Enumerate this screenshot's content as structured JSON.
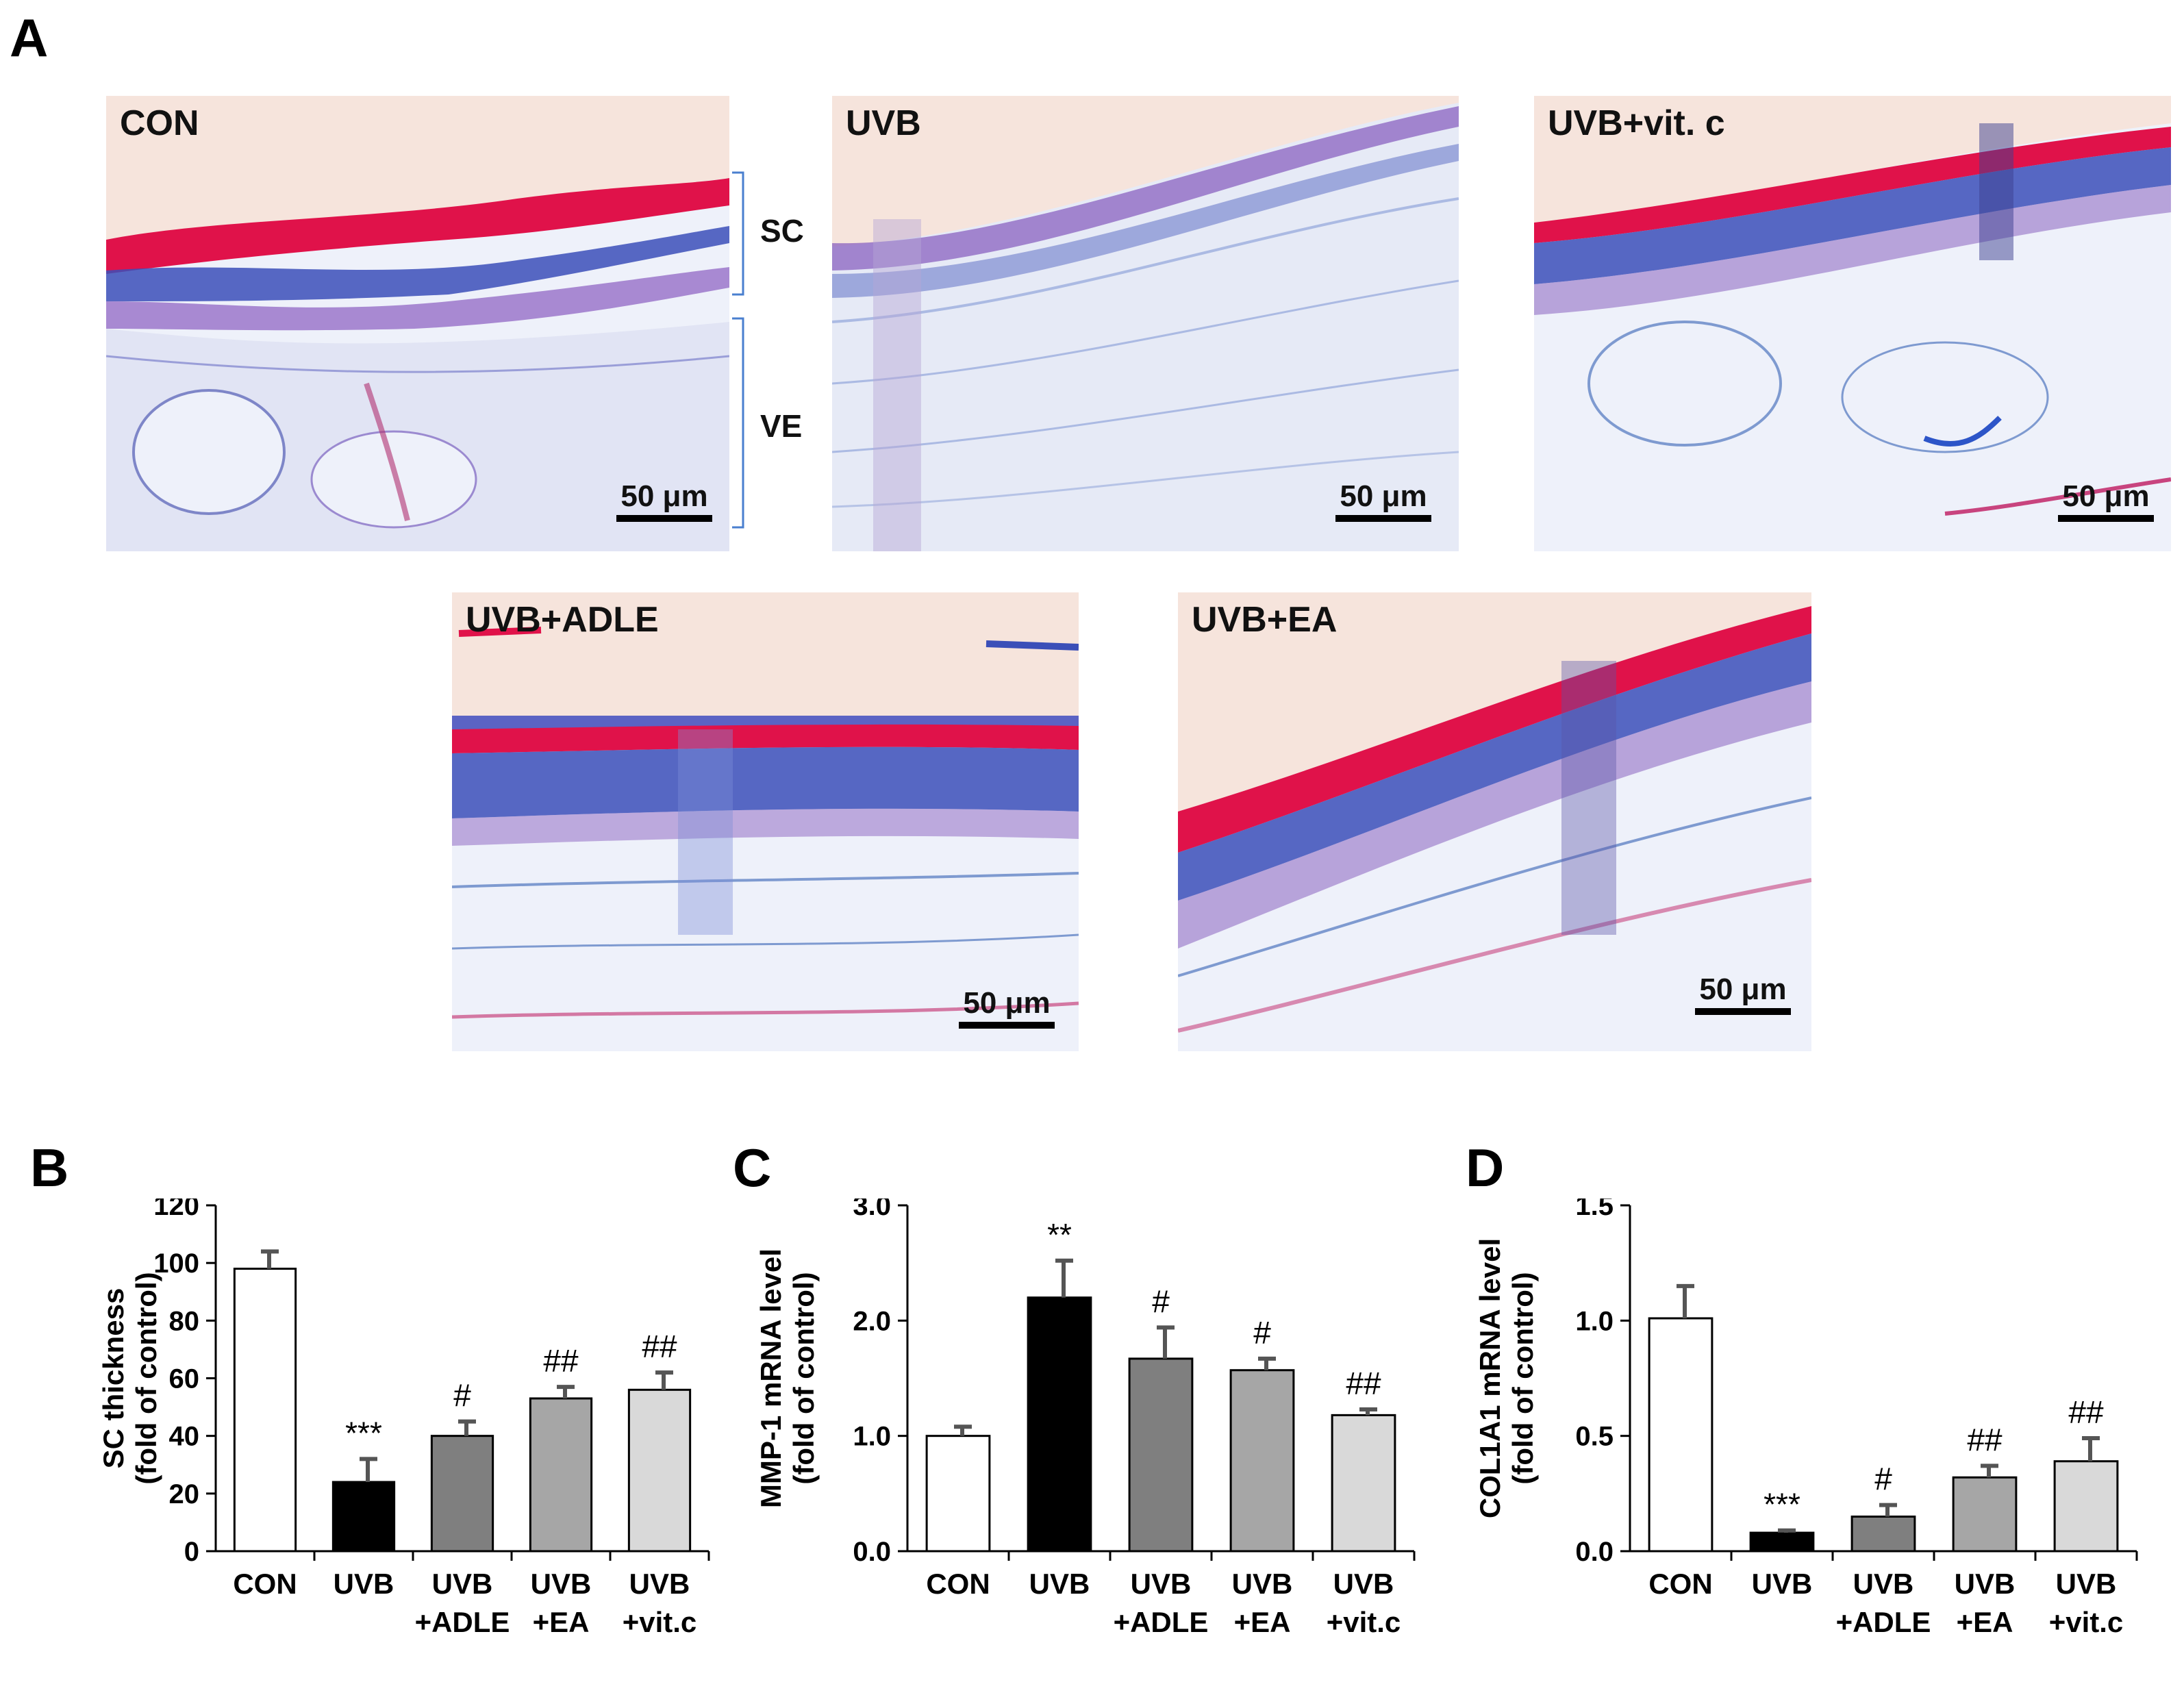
{
  "panels": {
    "a_label": "A",
    "b_label": "B",
    "c_label": "C",
    "d_label": "D"
  },
  "micrographs": [
    {
      "id": "con",
      "label": "CON",
      "scale": "50 μm"
    },
    {
      "id": "uvb",
      "label": "UVB",
      "scale": "50 μm"
    },
    {
      "id": "vitc",
      "label": "UVB+vit. c",
      "scale": "50 μm"
    },
    {
      "id": "adle",
      "label": "UVB+ADLE",
      "scale": "50 μm"
    },
    {
      "id": "ea",
      "label": "UVB+EA",
      "scale": "50 μm"
    }
  ],
  "layers": {
    "sc": "SC",
    "ve": "VE"
  },
  "colors": {
    "background": "#f6e4dc",
    "red_stain": "#e0124a",
    "blue_stain": "#3b4fb8",
    "bar_con": "#ffffff",
    "bar_uvb": "#000000",
    "bar_adle": "#7f7f7f",
    "bar_ea": "#a6a6a6",
    "bar_vitc": "#d9d9d9"
  },
  "chart_data": [
    {
      "panel": "B",
      "type": "bar",
      "categories": [
        [
          "CON"
        ],
        [
          "UVB"
        ],
        [
          "UVB",
          "+ADLE"
        ],
        [
          "UVB",
          "+EA"
        ],
        [
          "UVB",
          "+vit.c"
        ]
      ],
      "values": [
        98,
        24,
        40,
        53,
        56
      ],
      "errors": [
        6,
        8,
        5,
        4,
        6
      ],
      "annotations": [
        "",
        "***",
        "#",
        "##",
        "##"
      ],
      "ylabel": [
        "SC  thickness",
        "(fold of control)"
      ],
      "ylim": [
        0,
        120
      ],
      "yticks": [
        "0",
        "20",
        "40",
        "60",
        "80",
        "100",
        "120"
      ],
      "ytick_values": [
        0,
        20,
        40,
        60,
        80,
        100,
        120
      ]
    },
    {
      "panel": "C",
      "type": "bar",
      "categories": [
        [
          "CON"
        ],
        [
          "UVB"
        ],
        [
          "UVB",
          "+ADLE"
        ],
        [
          "UVB",
          "+EA"
        ],
        [
          "UVB",
          "+vit.c"
        ]
      ],
      "values": [
        1.0,
        2.2,
        1.67,
        1.57,
        1.18
      ],
      "errors": [
        0.08,
        0.32,
        0.27,
        0.1,
        0.05
      ],
      "annotations": [
        "",
        "**",
        "#",
        "#",
        "##"
      ],
      "ylabel": [
        "MMP-1 mRNA level",
        "(fold of control)"
      ],
      "ylim": [
        0,
        3.0
      ],
      "yticks": [
        "0.0",
        "1.0",
        "2.0",
        "3.0"
      ],
      "ytick_values": [
        0,
        1,
        2,
        3
      ]
    },
    {
      "panel": "D",
      "type": "bar",
      "categories": [
        [
          "CON"
        ],
        [
          "UVB"
        ],
        [
          "UVB",
          "+ADLE"
        ],
        [
          "UVB",
          "+EA"
        ],
        [
          "UVB",
          "+vit.c"
        ]
      ],
      "values": [
        1.01,
        0.08,
        0.15,
        0.32,
        0.39
      ],
      "errors": [
        0.14,
        0.01,
        0.05,
        0.05,
        0.1
      ],
      "annotations": [
        "",
        "***",
        "#",
        "##",
        "##"
      ],
      "ylabel": [
        "COL1A1 mRNA level",
        "(fold of control)"
      ],
      "ylim": [
        0,
        1.5
      ],
      "yticks": [
        "0.0",
        "0.5",
        "1.0",
        "1.5"
      ],
      "ytick_values": [
        0,
        0.5,
        1.0,
        1.5
      ]
    }
  ]
}
